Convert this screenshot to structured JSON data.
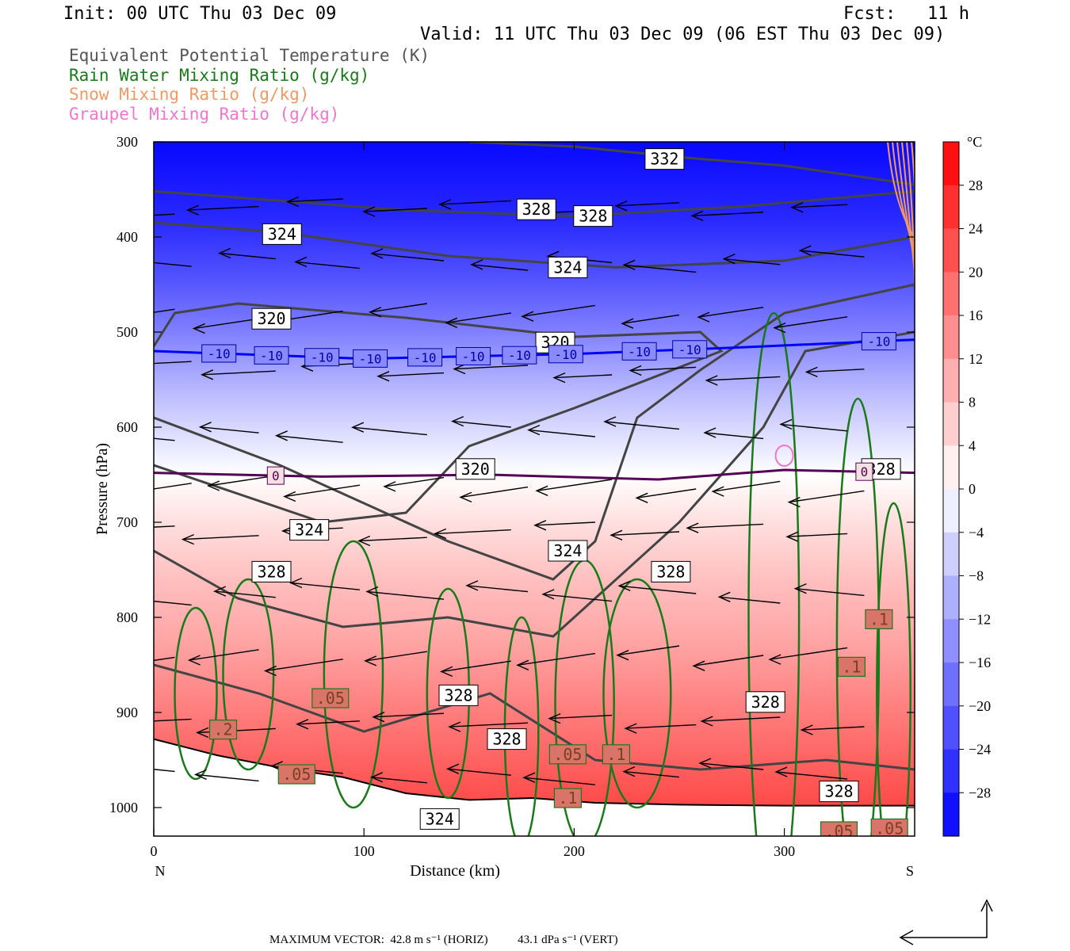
{
  "header": {
    "init": "Init: 00 UTC Thu 03 Dec 09",
    "fcst": "Fcst:   11 h",
    "valid": "Valid: 11 UTC Thu 03 Dec 09 (06 EST Thu 03 Dec 09)"
  },
  "legend": [
    {
      "label": "Equivalent Potential Temperature (K)",
      "color": "#555555"
    },
    {
      "label": "Rain Water Mixing Ratio (g/kg)",
      "color": "#1a7a1a"
    },
    {
      "label": "Snow Mixing Ratio (g/kg)",
      "color": "#ee9966"
    },
    {
      "label": "Graupel Mixing Ratio (g/kg)",
      "color": "#ee77cc"
    }
  ],
  "chart_data": {
    "type": "heatmap",
    "xlabel": "Distance (km)",
    "ylabel": "Pressure (hPa)",
    "x_ticks": [
      0,
      100,
      200,
      300
    ],
    "xlim": [
      0,
      362
    ],
    "y_ticks": [
      300,
      400,
      500,
      600,
      700,
      800,
      900,
      1000
    ],
    "ylim": [
      1030,
      300
    ],
    "x_end_labels": {
      "left": "N",
      "right": "S"
    },
    "colorbar": {
      "unit": "°C",
      "ticks": [
        28,
        24,
        20,
        16,
        12,
        8,
        4,
        0,
        -4,
        -8,
        -12,
        -16,
        -20,
        -24,
        -28
      ],
      "range": [
        -32,
        32
      ],
      "cold_color": "#0000ff",
      "warm_color": "#ff0000"
    },
    "temperature_isotherms": [
      {
        "value": -10,
        "color": "#0000ff",
        "pressure_by_distance": [
          [
            0,
            520
          ],
          [
            100,
            528
          ],
          [
            200,
            523
          ],
          [
            280,
            516
          ],
          [
            362,
            508
          ]
        ]
      },
      {
        "value": 0,
        "color": "#550055",
        "pressure_by_distance": [
          [
            0,
            648
          ],
          [
            80,
            652
          ],
          [
            160,
            650
          ],
          [
            240,
            655
          ],
          [
            300,
            645
          ],
          [
            362,
            648
          ]
        ]
      }
    ],
    "theta_e_contour_labels": [
      {
        "label": "332",
        "distance": 243,
        "pressure": 318
      },
      {
        "label": "328",
        "distance": 182,
        "pressure": 371
      },
      {
        "label": "328",
        "distance": 209,
        "pressure": 378
      },
      {
        "label": "324",
        "distance": 61,
        "pressure": 397
      },
      {
        "label": "324",
        "distance": 197,
        "pressure": 432
      },
      {
        "label": "320",
        "distance": 56,
        "pressure": 486
      },
      {
        "label": "320",
        "distance": 191,
        "pressure": 511
      },
      {
        "label": "320",
        "distance": 153,
        "pressure": 644
      },
      {
        "label": "324",
        "distance": 74,
        "pressure": 708
      },
      {
        "label": "324",
        "distance": 197,
        "pressure": 730
      },
      {
        "label": "328",
        "distance": 56,
        "pressure": 752
      },
      {
        "label": "328",
        "distance": 246,
        "pressure": 752
      },
      {
        "label": "328",
        "distance": 145,
        "pressure": 882
      },
      {
        "label": "328",
        "distance": 291,
        "pressure": 889
      },
      {
        "label": "328",
        "distance": 168,
        "pressure": 928
      },
      {
        "label": "328",
        "distance": 326,
        "pressure": 983
      },
      {
        "label": "324",
        "distance": 136,
        "pressure": 1012
      },
      {
        "label": "328",
        "distance": 346,
        "pressure": 644
      }
    ],
    "rain_contour_labels": [
      {
        "label": ".2",
        "distance": 33,
        "pressure": 918
      },
      {
        "label": ".05",
        "distance": 84,
        "pressure": 885
      },
      {
        "label": ".05",
        "distance": 68,
        "pressure": 965
      },
      {
        "label": ".05",
        "distance": 197,
        "pressure": 944
      },
      {
        "label": ".1",
        "distance": 220,
        "pressure": 944
      },
      {
        "label": ".1",
        "distance": 197,
        "pressure": 990
      },
      {
        "label": ".1",
        "distance": 345,
        "pressure": 802
      },
      {
        "label": ".1",
        "distance": 332,
        "pressure": 852
      },
      {
        "label": ".05",
        "distance": 326,
        "pressure": 1025
      },
      {
        "label": ".05",
        "distance": 350,
        "pressure": 1022
      }
    ],
    "isotherm_labels": [
      {
        "label": "-10",
        "distance": 31
      },
      {
        "label": "-10",
        "distance": 56
      },
      {
        "label": "-10",
        "distance": 80
      },
      {
        "label": "-10",
        "distance": 103
      },
      {
        "label": "-10",
        "distance": 129
      },
      {
        "label": "-10",
        "distance": 152
      },
      {
        "label": "-10",
        "distance": 174
      },
      {
        "label": "-10",
        "distance": 196
      },
      {
        "label": "-10",
        "distance": 231
      },
      {
        "label": "-10",
        "distance": 255
      },
      {
        "label": "-10",
        "distance": 345
      },
      {
        "label": "0",
        "distance": 58
      },
      {
        "label": "0",
        "distance": 338
      }
    ]
  },
  "footer": {
    "vector_text": "MAXIMUM VECTOR:  42.8 m s⁻¹ (HORIZ)          43.1 dPa s⁻¹ (VERT)"
  }
}
